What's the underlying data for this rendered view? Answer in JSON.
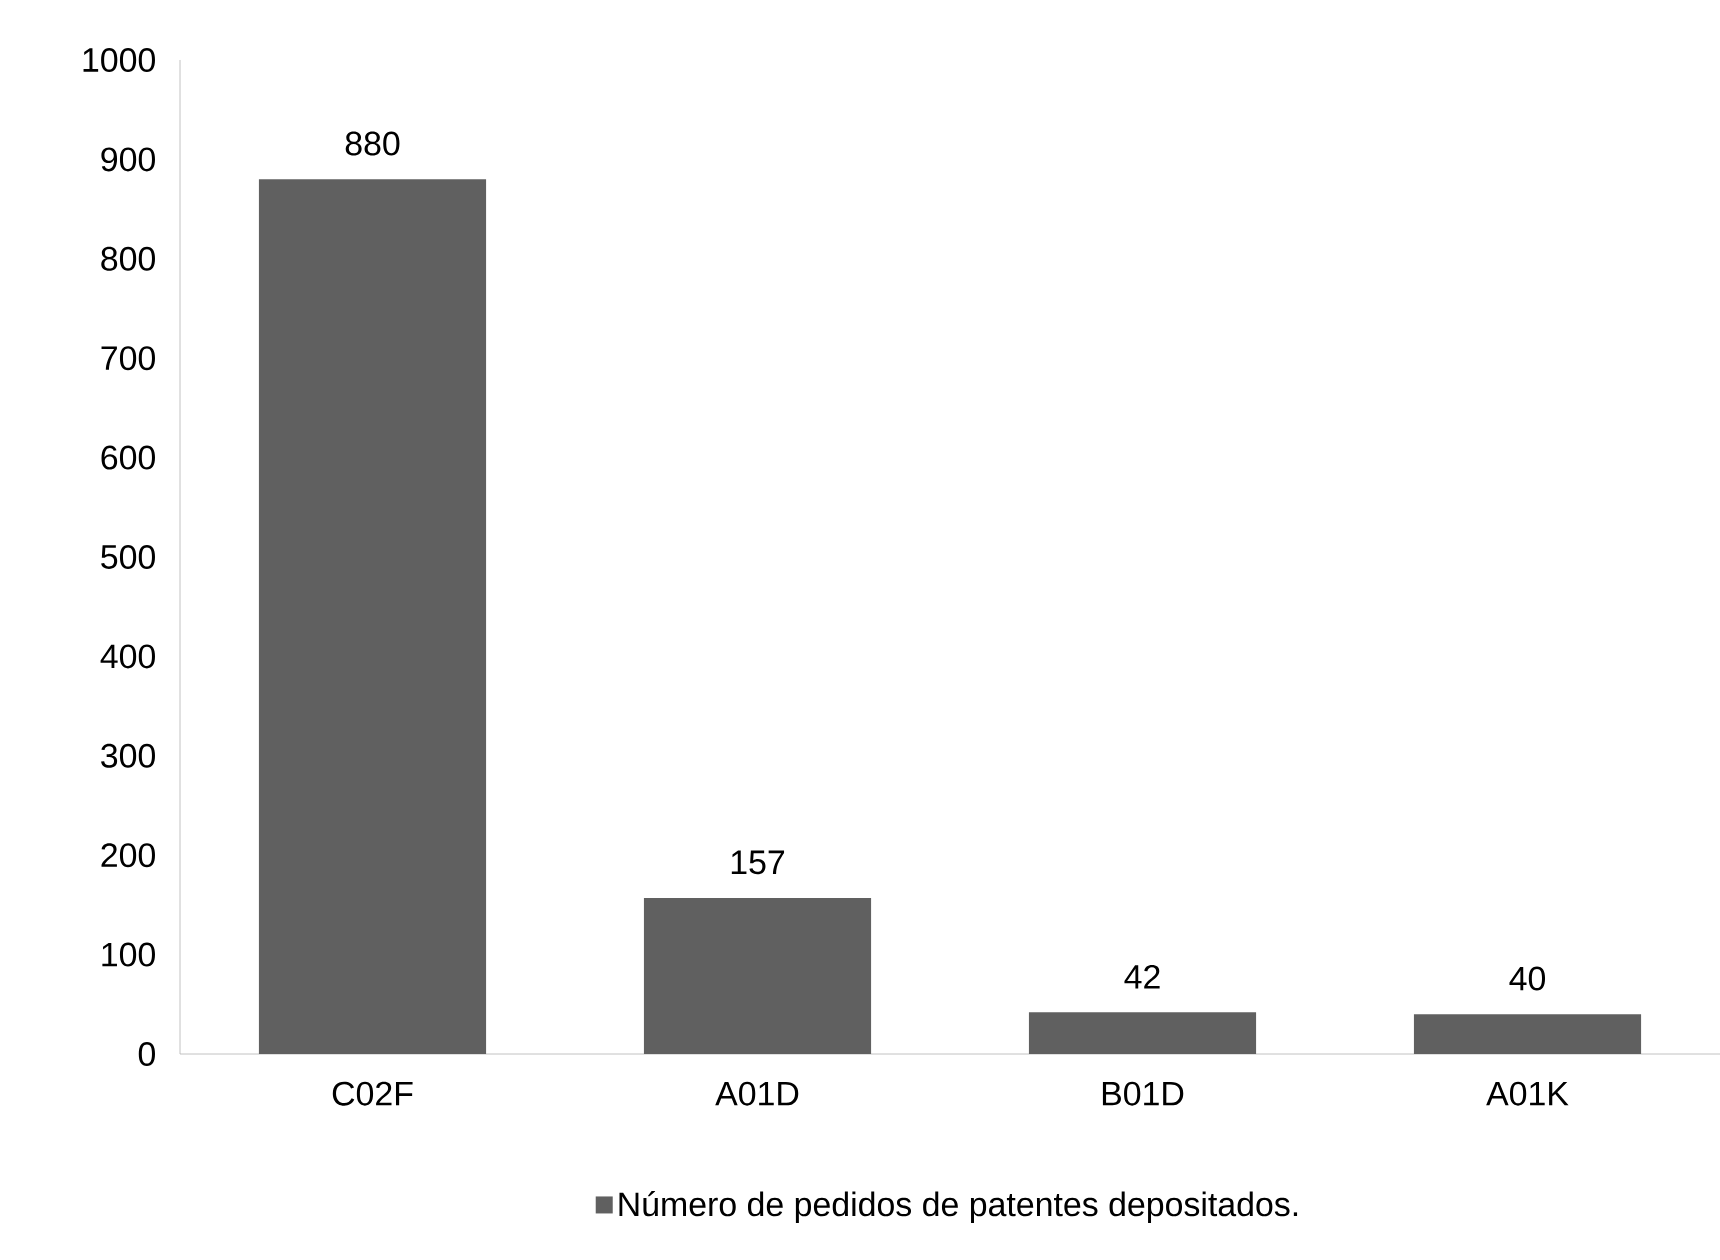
{
  "chart_data": {
    "type": "bar",
    "categories": [
      "C02F",
      "A01D",
      "B01D",
      "A01K"
    ],
    "series": [
      {
        "name": "Número de pedidos de patentes depositados.",
        "color": "#606060",
        "values": [
          880,
          157,
          42,
          40
        ]
      }
    ],
    "ylim": [
      0,
      1000
    ],
    "yticks": [
      0,
      100,
      200,
      300,
      400,
      500,
      600,
      700,
      800,
      900,
      1000
    ],
    "data_labels": true,
    "grid": false,
    "legend": "bottom"
  }
}
